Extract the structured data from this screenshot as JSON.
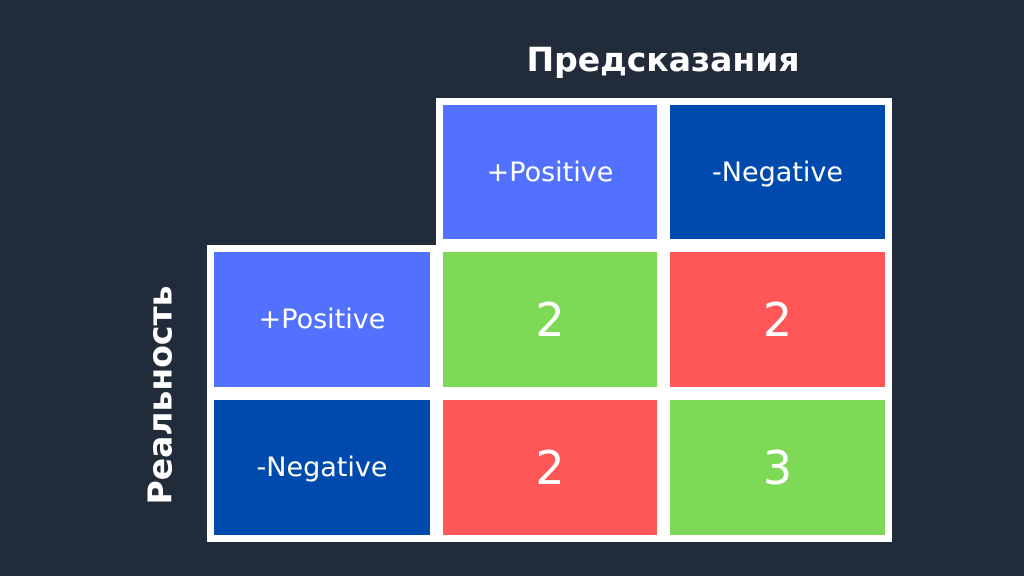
{
  "title_top": "Предсказания",
  "title_side": "Реальность",
  "colors": {
    "positive": "#5271ff",
    "negative": "#004aad",
    "correct": "#7ed957",
    "error": "#ff5757",
    "background": "#222b3a"
  },
  "columns": [
    "+Positive",
    "-Negative"
  ],
  "rows": [
    {
      "label": "+Positive",
      "values": [
        "2",
        "2"
      ]
    },
    {
      "label": "-Negative",
      "values": [
        "2",
        "3"
      ]
    }
  ]
}
